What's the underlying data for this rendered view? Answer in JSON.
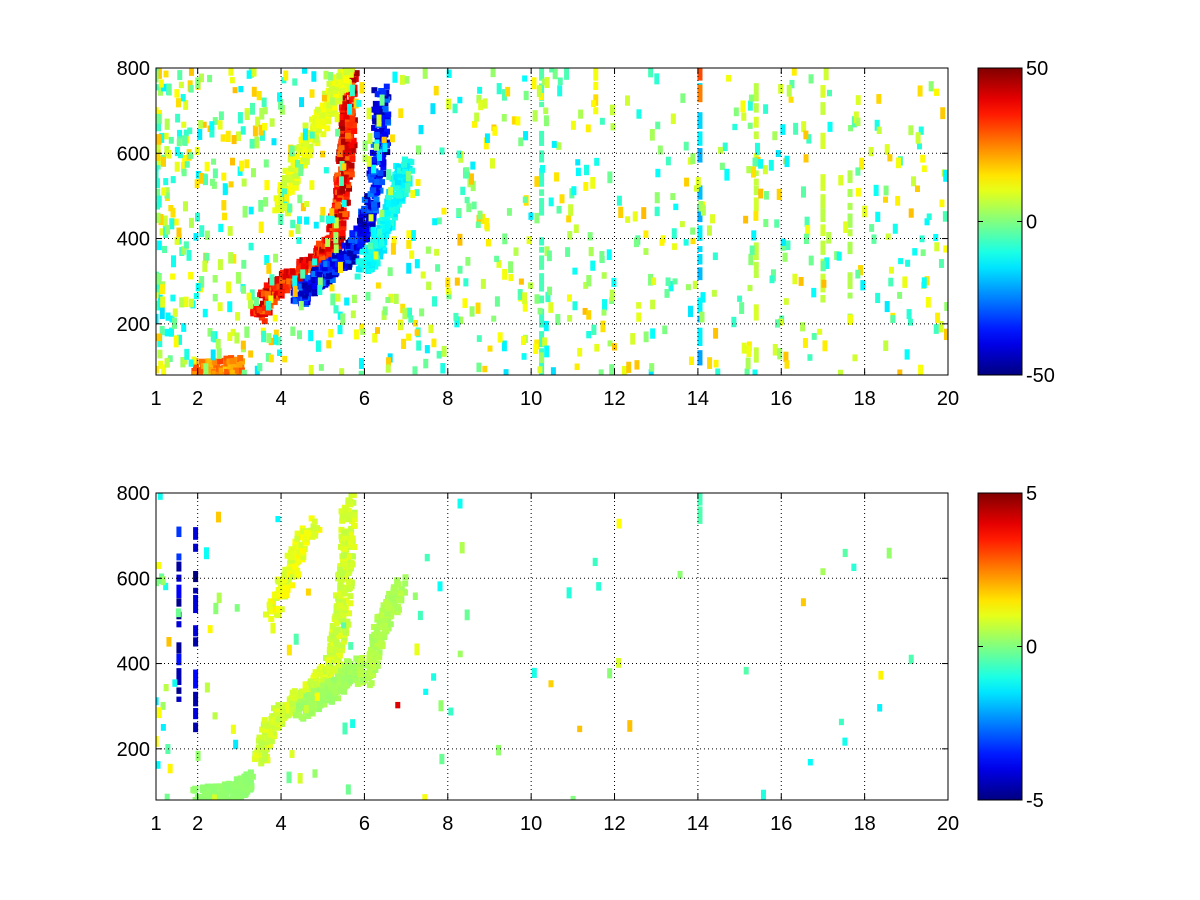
{
  "chart_data": [
    {
      "type": "heatmap",
      "title": "",
      "xlabel": "",
      "ylabel": "",
      "xlim": [
        1,
        20
      ],
      "ylim": [
        80,
        800
      ],
      "xticks": [
        1,
        2,
        4,
        6,
        8,
        10,
        12,
        14,
        16,
        18,
        20
      ],
      "yticks": [
        200,
        400,
        600,
        800
      ],
      "grid": true,
      "colorbar": {
        "colormap": "jet",
        "range": [
          -50,
          50
        ],
        "ticks": [
          -50,
          0,
          50
        ]
      },
      "features": [
        {
          "points": [
            [
              2.0,
              92
            ],
            [
              2.6,
              96
            ],
            [
              3.0,
              102
            ]
          ],
          "value": 30
        },
        {
          "points": [
            [
              3.5,
              225
            ],
            [
              3.8,
              280
            ],
            [
              4.3,
              310
            ],
            [
              4.8,
              345
            ],
            [
              5.2,
              380
            ],
            [
              5.4,
              450
            ],
            [
              5.5,
              540
            ],
            [
              5.6,
              620
            ],
            [
              5.6,
              720
            ],
            [
              5.65,
              790
            ]
          ],
          "value": 45
        },
        {
          "points": [
            [
              4.4,
              260
            ],
            [
              4.8,
              300
            ],
            [
              5.3,
              335
            ],
            [
              5.7,
              370
            ],
            [
              6.0,
              420
            ],
            [
              6.2,
              500
            ],
            [
              6.4,
              620
            ],
            [
              6.4,
              760
            ]
          ],
          "value": -45
        },
        {
          "points": [
            [
              4.0,
              470
            ],
            [
              4.4,
              590
            ],
            [
              4.9,
              670
            ],
            [
              5.3,
              740
            ],
            [
              5.6,
              790
            ]
          ],
          "value": 12
        },
        {
          "points": [
            [
              6.0,
              330
            ],
            [
              6.3,
              380
            ],
            [
              6.6,
              450
            ],
            [
              6.8,
              520
            ],
            [
              7.0,
              580
            ]
          ],
          "value": -15
        }
      ],
      "stripes": [
        {
          "x": 14.05,
          "ymin": 80,
          "ymax": 800,
          "value": -18
        },
        {
          "x": 14.05,
          "ymin": 710,
          "ymax": 800,
          "value": 30
        },
        {
          "x": 15.4,
          "ymin": 80,
          "ymax": 800,
          "value": 8
        },
        {
          "x": 11.55,
          "ymin": 690,
          "ymax": 800,
          "value": 14
        },
        {
          "x": 10.25,
          "ymin": 80,
          "ymax": 800,
          "value": -6
        },
        {
          "x": 17.0,
          "ymin": 250,
          "ymax": 760,
          "value": 8
        },
        {
          "x": 17.65,
          "ymin": 200,
          "ymax": 560,
          "value": 5
        }
      ]
    },
    {
      "type": "heatmap",
      "title": "",
      "xlabel": "",
      "ylabel": "",
      "xlim": [
        1,
        20
      ],
      "ylim": [
        80,
        800
      ],
      "xticks": [
        1,
        2,
        4,
        6,
        8,
        10,
        12,
        14,
        16,
        18,
        20
      ],
      "yticks": [
        200,
        400,
        600,
        800
      ],
      "grid": true,
      "colorbar": {
        "colormap": "jet",
        "range": [
          -5,
          5
        ],
        "ticks": [
          -5,
          0,
          5
        ]
      },
      "features": [
        {
          "points": [
            [
              2.0,
              90
            ],
            [
              2.5,
              95
            ],
            [
              3.0,
              100
            ],
            [
              3.2,
              130
            ]
          ],
          "value": 0.2
        },
        {
          "points": [
            [
              3.5,
              180
            ],
            [
              3.8,
              260
            ],
            [
              4.3,
              300
            ],
            [
              4.8,
              340
            ],
            [
              5.2,
              390
            ],
            [
              5.4,
              470
            ],
            [
              5.5,
              560
            ],
            [
              5.6,
              660
            ],
            [
              5.6,
              790
            ]
          ],
          "value": 1.0
        },
        {
          "points": [
            [
              4.5,
              290
            ],
            [
              5.0,
              320
            ],
            [
              5.5,
              360
            ],
            [
              5.8,
              400
            ]
          ],
          "value": 0.4
        },
        {
          "points": [
            [
              6.0,
              360
            ],
            [
              6.3,
              450
            ],
            [
              6.6,
              520
            ],
            [
              6.9,
              590
            ]
          ],
          "value": 0.6
        },
        {
          "points": [
            [
              3.8,
              520
            ],
            [
              4.3,
              640
            ],
            [
              4.8,
              730
            ]
          ],
          "value": 1.3
        }
      ],
      "stripes": [
        {
          "x": 14.05,
          "ymin": 720,
          "ymax": 800,
          "value": -0.5
        },
        {
          "x": 1.55,
          "ymin": 310,
          "ymax": 760,
          "value": -4.5
        },
        {
          "x": 1.95,
          "ymin": 230,
          "ymax": 720,
          "value": -4.5
        },
        {
          "x": 6.8,
          "ymin": 295,
          "ymax": 310,
          "value": 5
        }
      ]
    }
  ]
}
